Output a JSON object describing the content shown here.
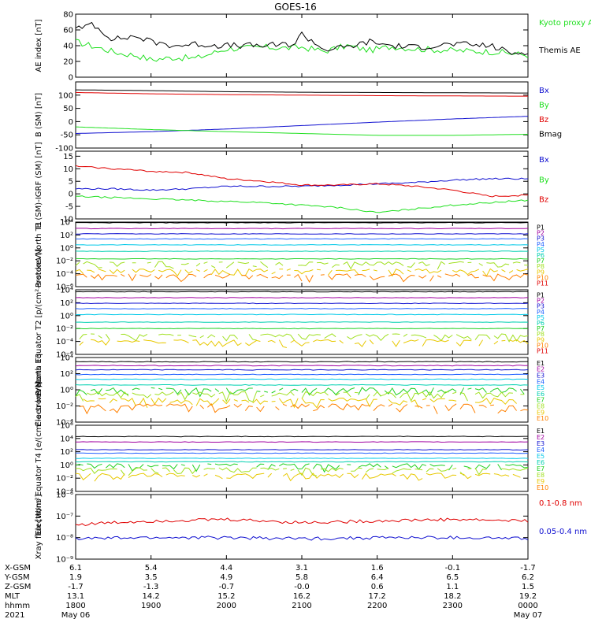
{
  "title": "GOES-16",
  "colors": {
    "black": "#000000",
    "red": "#e00000",
    "green": "#20e020",
    "blue": "#1010d0",
    "ch": [
      "#000000",
      "#a000a0",
      "#1010d0",
      "#2060ff",
      "#00c8e8",
      "#00d0b0",
      "#20d020",
      "#a0e020",
      "#e8c800",
      "#ff8000",
      "#e00000",
      "#b00000"
    ]
  },
  "chart_data": [
    {
      "type": "line",
      "panel": "AE index",
      "ylabel": "AE index [nT]",
      "ylim": [
        0,
        80
      ],
      "yticks": [
        "0",
        "20",
        "40",
        "60",
        "80"
      ],
      "series": [
        {
          "name": "Kyoto proxy AE",
          "color": "#20e020",
          "x": [
            0,
            0.4,
            0.6,
            0.8,
            1,
            1.3,
            1.6,
            2,
            2.5,
            2.8,
            3,
            3.3,
            3.6,
            3.9,
            4.2,
            4.5,
            5,
            5.6,
            6
          ],
          "y": [
            45,
            35,
            30,
            28,
            22,
            25,
            24,
            36,
            38,
            37,
            38,
            33,
            40,
            34,
            39,
            36,
            34,
            32,
            28
          ]
        },
        {
          "name": "Themis AE",
          "color": "#000000",
          "x": [
            0,
            0.1,
            0.2,
            0.3,
            0.5,
            0.8,
            1,
            1.3,
            1.6,
            2,
            2.5,
            2.9,
            3,
            3.3,
            3.6,
            3.9,
            4.2,
            4.5,
            5,
            5.5,
            5.8,
            6
          ],
          "y": [
            65,
            60,
            70,
            62,
            48,
            52,
            45,
            40,
            42,
            40,
            40,
            42,
            55,
            35,
            38,
            45,
            40,
            38,
            42,
            40,
            30,
            33
          ]
        }
      ]
    },
    {
      "type": "line",
      "panel": "B (SM)",
      "ylabel": "B (SM) [nT]",
      "ylim": [
        -100,
        150
      ],
      "yticks": [
        "-100",
        "-50",
        "0",
        "50",
        "100"
      ],
      "series": [
        {
          "name": "Bx",
          "color": "#1010d0",
          "x": [
            0,
            1,
            2,
            3,
            4,
            5,
            6
          ],
          "y": [
            -45,
            -38,
            -28,
            -15,
            -2,
            10,
            20
          ]
        },
        {
          "name": "By",
          "color": "#20e020",
          "x": [
            0,
            1,
            2,
            3,
            4,
            5,
            6
          ],
          "y": [
            -20,
            -30,
            -38,
            -45,
            -52,
            -52,
            -48
          ]
        },
        {
          "name": "Bz",
          "color": "#e00000",
          "x": [
            0,
            1,
            2,
            3,
            4,
            5,
            6
          ],
          "y": [
            110,
            105,
            102,
            100,
            98,
            97,
            96
          ]
        },
        {
          "name": "Bmag",
          "color": "#000000",
          "x": [
            0,
            1,
            2,
            3,
            4,
            5,
            6
          ],
          "y": [
            120,
            117,
            113,
            111,
            110,
            109,
            108
          ]
        }
      ]
    },
    {
      "type": "line",
      "panel": "B (SM)-IGRF (SM)",
      "ylabel": "B (SM)-IGRF (SM) [nT]",
      "ylim": [
        -10,
        17
      ],
      "yticks": [
        "-10",
        "-5",
        "0",
        "5",
        "10",
        "15"
      ],
      "series": [
        {
          "name": "Bx",
          "color": "#1010d0",
          "x": [
            0,
            0.5,
            1,
            1.5,
            2,
            2.5,
            3,
            3.5,
            4,
            4.5,
            5,
            5.5,
            6
          ],
          "y": [
            2,
            2,
            1.5,
            2,
            3,
            3,
            3,
            3.5,
            4,
            4.5,
            5.5,
            6,
            6
          ]
        },
        {
          "name": "By",
          "color": "#20e020",
          "x": [
            0,
            0.5,
            1,
            1.5,
            2,
            2.5,
            3,
            3.5,
            4,
            4.5,
            5,
            5.5,
            6
          ],
          "y": [
            -1,
            -1.5,
            -2,
            -2.5,
            -3,
            -3.5,
            -4.5,
            -5.5,
            -7.5,
            -6,
            -4.5,
            -3.5,
            -2.5
          ]
        },
        {
          "name": "Bz",
          "color": "#e00000",
          "x": [
            0,
            0.5,
            1,
            1.5,
            2,
            2.5,
            3,
            3.5,
            4,
            4.5,
            5,
            5.5,
            6
          ],
          "y": [
            11,
            10,
            9,
            8.5,
            6,
            5,
            3.5,
            3.5,
            4,
            3,
            1.5,
            -1,
            -0.5
          ]
        }
      ]
    },
    {
      "type": "line",
      "panel": "Protons North T1",
      "ylabel": "Protons North T1",
      "scale": "log",
      "ylim": [
        1e-06,
        10000.0
      ],
      "yticks": [
        "10⁴",
        "10²",
        "10⁰",
        "10⁻²",
        "10⁻⁴",
        "10⁻⁶"
      ],
      "legend": [
        "P1",
        "P2",
        "P3",
        "P4",
        "P5",
        "P6",
        "P7",
        "P8",
        "P9",
        "P10",
        "P11"
      ],
      "levels": [
        8000,
        1000,
        150,
        25,
        3,
        0.3,
        0.02,
        0.004,
        0.0003,
        5e-05,
        null
      ]
    },
    {
      "type": "line",
      "panel": "Protons Equator T2",
      "ylabel": "Protons Equator T2 [p/(cm²-s-sr-keV)]",
      "scale": "log",
      "ylim": [
        1e-06,
        10000.0
      ],
      "yticks": [
        "10⁴",
        "10²",
        "10⁰",
        "10⁻²",
        "10⁻⁴",
        "10⁻⁶"
      ],
      "legend": [
        "P1",
        "P2",
        "P3",
        "P4",
        "P5",
        "P6",
        "P7",
        "P8",
        "P9",
        "P10",
        "P11"
      ],
      "levels": [
        5000,
        600,
        80,
        12,
        1.5,
        0.1,
        0.01,
        0.0008,
        0.0001,
        null,
        null
      ]
    },
    {
      "type": "line",
      "panel": "Electrons North T3",
      "ylabel": "Electrons North T3",
      "scale": "log",
      "ylim": [
        0.0001,
        10000.0
      ],
      "yticks": [
        "10⁴",
        "10²",
        "10⁰",
        "10⁻²",
        "10⁻⁴"
      ],
      "legend": [
        "E1",
        "E2",
        "E3",
        "E4",
        "E5",
        "E6",
        "E7",
        "E8",
        "E9",
        "E10"
      ],
      "levels": [
        3000,
        1000,
        300,
        80,
        20,
        4,
        1,
        0.3,
        0.05,
        0.01
      ]
    },
    {
      "type": "line",
      "panel": "Electrons Equator T4",
      "ylabel": "Electrons Equator T4 [e/(cm²-s-sr-keV)]",
      "scale": "log",
      "ylim": [
        0.0001,
        1000000.0
      ],
      "yticks": [
        "10⁶",
        "10⁴",
        "10²",
        "10⁰",
        "10⁻²",
        "10⁻⁴"
      ],
      "legend": [
        "E1",
        "E2",
        "E3",
        "E4",
        "E5",
        "E6",
        "E7",
        "E8",
        "E9",
        "E10"
      ],
      "levels": [
        20000,
        3000,
        200,
        60,
        10,
        3,
        0.8,
        0.2,
        0.03,
        null
      ]
    },
    {
      "type": "line",
      "panel": "Xray flux",
      "ylabel": "Xray flux [W/m²]",
      "scale": "log",
      "ylim": [
        1e-09,
        1e-06
      ],
      "yticks": [
        "10⁻⁶",
        "10⁻⁷",
        "10⁻⁸",
        "10⁻⁹"
      ],
      "series": [
        {
          "name": "0.1-0.8 nm",
          "color": "#e00000",
          "x": [
            0,
            1,
            2,
            3,
            4,
            5,
            6
          ],
          "y": [
            4e-08,
            6e-08,
            7e-08,
            5e-08,
            6e-08,
            7e-08,
            6e-08
          ]
        },
        {
          "name": "0.05-0.4 nm",
          "color": "#1010d0",
          "x": [
            0,
            1,
            2,
            3,
            4,
            5,
            6
          ],
          "y": [
            9e-09,
            1e-08,
            1e-08,
            9e-09,
            1e-08,
            1e-08,
            9e-09
          ]
        }
      ]
    }
  ],
  "xaxis": {
    "rows": [
      {
        "label": "X-GSM",
        "values": [
          "6.1",
          "5.4",
          "4.4",
          "3.1",
          "1.6",
          "-0.1",
          "-1.7"
        ]
      },
      {
        "label": "Y-GSM",
        "values": [
          "1.9",
          "3.5",
          "4.9",
          "5.8",
          "6.4",
          "6.5",
          "6.2"
        ]
      },
      {
        "label": "Z-GSM",
        "values": [
          "-1.7",
          "-1.3",
          "-0.7",
          "-0.0",
          "0.6",
          "1.1",
          "1.5"
        ]
      },
      {
        "label": "MLT",
        "values": [
          "13.1",
          "14.2",
          "15.2",
          "16.2",
          "17.2",
          "18.2",
          "19.2"
        ]
      },
      {
        "label": "hhmm",
        "values": [
          "1800",
          "1900",
          "2000",
          "2100",
          "2200",
          "2300",
          "0000"
        ]
      },
      {
        "label": "2021",
        "values": [
          "May 06",
          "",
          "",
          "",
          "",
          "",
          "May 07"
        ]
      }
    ]
  }
}
